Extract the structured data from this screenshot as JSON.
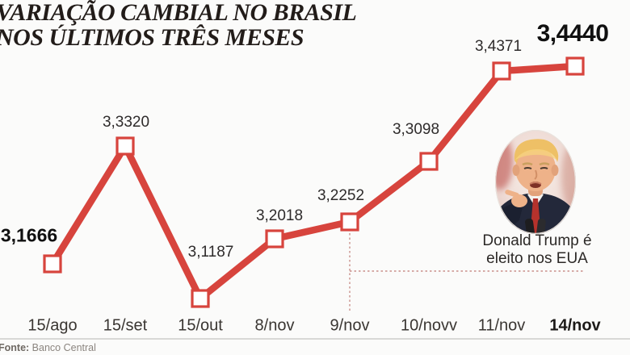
{
  "colors": {
    "background": "#fbfbfa",
    "line": "#d7443d",
    "marker_fill": "#ffffff",
    "callout": "#c9908a",
    "title": "#221c19",
    "value_label": "#2e2b2b",
    "value_label_strong": "#101010",
    "axis_label": "#3a3632",
    "axis_label_strong": "#1c1a18",
    "caption": "#2c2927",
    "source_label": "#6e6862",
    "source_text": "#8b857f",
    "divider": "#d8d8d6"
  },
  "chart_data": {
    "type": "line",
    "title_line1": "VARIAÇÃO CAMBIAL NO BRASIL",
    "title_line2": "NOS ÚLTIMOS TRÊS MESES",
    "categories": [
      "15/ago",
      "15/set",
      "15/out",
      "8/nov",
      "9/nov",
      "10/novv",
      "11/nov",
      "14/nov"
    ],
    "values": [
      3.1666,
      3.332,
      3.1187,
      3.2018,
      3.2252,
      3.3098,
      3.4371,
      3.444
    ],
    "value_labels": [
      "3,1666",
      "3,3320",
      "3,1187",
      "3,2018",
      "3,2252",
      "3,3098",
      "3,4371",
      "3,4440"
    ],
    "value_label_styles": [
      "bold",
      "normal",
      "normal",
      "normal",
      "normal",
      "normal",
      "normal",
      "big"
    ],
    "axis_label_styles": [
      "normal",
      "normal",
      "normal",
      "normal",
      "normal",
      "normal",
      "normal",
      "bold"
    ],
    "ylim": [
      3.06,
      3.47
    ],
    "grid": false,
    "legend": false,
    "annotation": {
      "line1": "Donald Trump é",
      "line2": "eleito nos EUA",
      "anchor_index": 4,
      "anchor_category": "9/nov"
    }
  },
  "source": {
    "label": "Fonte:",
    "text": "Banco Central"
  }
}
